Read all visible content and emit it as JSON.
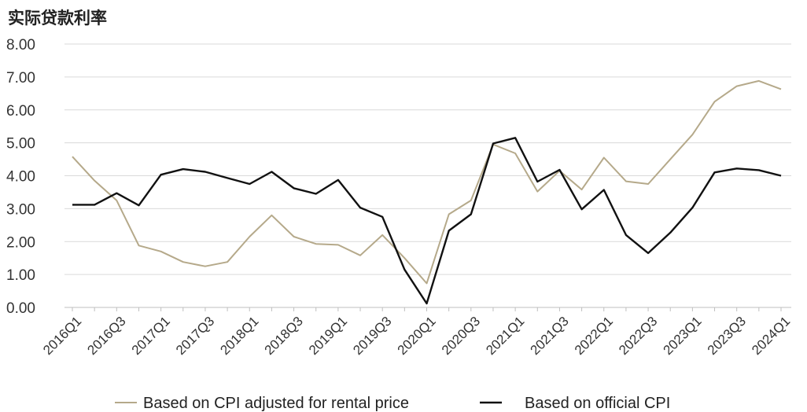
{
  "chart_data": {
    "type": "line",
    "title": "实际贷款利率",
    "xlabel": "",
    "ylabel": "",
    "ylim": [
      0,
      8
    ],
    "yticks": [
      "0.00",
      "1.00",
      "2.00",
      "3.00",
      "4.00",
      "5.00",
      "6.00",
      "7.00",
      "8.00"
    ],
    "grid": true,
    "legend_position": "bottom",
    "x": [
      "2016Q1",
      "2016Q2",
      "2016Q3",
      "2016Q4",
      "2017Q1",
      "2017Q2",
      "2017Q3",
      "2017Q4",
      "2018Q1",
      "2018Q2",
      "2018Q3",
      "2018Q4",
      "2019Q1",
      "2019Q2",
      "2019Q3",
      "2019Q4",
      "2020Q1",
      "2020Q2",
      "2020Q3",
      "2020Q4",
      "2021Q1",
      "2021Q2",
      "2021Q3",
      "2021Q4",
      "2022Q1",
      "2022Q2",
      "2022Q3",
      "2022Q4",
      "2023Q1",
      "2023Q2",
      "2023Q3",
      "2023Q4",
      "2024Q1"
    ],
    "x_tick_labels": [
      "2016Q1",
      "2016Q3",
      "2017Q1",
      "2017Q3",
      "2018Q1",
      "2018Q3",
      "2019Q1",
      "2019Q3",
      "2020Q1",
      "2020Q3",
      "2021Q1",
      "2021Q3",
      "2022Q1",
      "2022Q3",
      "2023Q1",
      "2023Q3",
      "2024Q1"
    ],
    "series": [
      {
        "name": "Based on CPI adjusted for rental price",
        "color": "#b5a98a",
        "values": [
          4.58,
          3.85,
          3.25,
          1.88,
          1.7,
          1.38,
          1.25,
          1.38,
          2.15,
          2.8,
          2.15,
          1.93,
          1.9,
          1.58,
          2.2,
          1.5,
          0.73,
          2.83,
          3.25,
          4.95,
          4.68,
          3.52,
          4.15,
          3.58,
          4.55,
          3.83,
          3.75,
          4.5,
          5.25,
          6.25,
          6.72,
          6.88,
          6.63
        ]
      },
      {
        "name": "Based on official CPI",
        "color": "#111111",
        "values": [
          3.12,
          3.12,
          3.47,
          3.1,
          4.03,
          4.2,
          4.12,
          3.93,
          3.75,
          4.12,
          3.62,
          3.45,
          3.87,
          3.03,
          2.75,
          1.15,
          0.12,
          2.33,
          2.83,
          4.98,
          5.15,
          3.82,
          4.18,
          2.98,
          3.57,
          2.2,
          1.65,
          2.27,
          3.03,
          4.1,
          4.22,
          4.17,
          4.0
        ]
      }
    ]
  }
}
